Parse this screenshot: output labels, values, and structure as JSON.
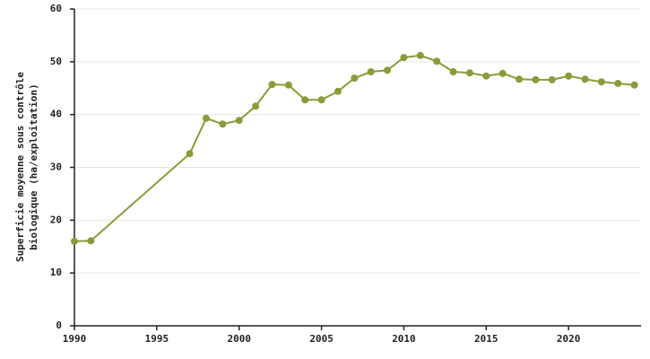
{
  "chart_data": {
    "type": "line",
    "ylabel": [
      "Superficie moyenne sous contrôle",
      "biologique (ha/exploitation)"
    ],
    "x": [
      1990,
      1991,
      1997,
      1998,
      1999,
      2000,
      2001,
      2002,
      2003,
      2004,
      2005,
      2006,
      2007,
      2008,
      2009,
      2010,
      2011,
      2012,
      2013,
      2014,
      2015,
      2016,
      2017,
      2018,
      2019,
      2020,
      2021,
      2022,
      2023,
      2024
    ],
    "series": [
      {
        "color": "#8a9b3a",
        "values": [
          16.0,
          16.1,
          32.6,
          39.3,
          38.2,
          38.9,
          41.6,
          45.7,
          45.6,
          42.8,
          42.8,
          44.4,
          46.9,
          48.1,
          48.4,
          50.8,
          51.2,
          50.1,
          48.1,
          47.9,
          47.3,
          47.8,
          46.7,
          46.6,
          46.6,
          47.3,
          46.7,
          46.2,
          45.9,
          45.6
        ]
      }
    ],
    "xlim": [
      1990,
      2024.4
    ],
    "ylim": [
      0,
      60
    ],
    "xticks": [
      1990,
      1995,
      2000,
      2005,
      2010,
      2015,
      2020
    ],
    "yticks": [
      0,
      10,
      20,
      30,
      40,
      50,
      60
    ],
    "grid": true
  }
}
